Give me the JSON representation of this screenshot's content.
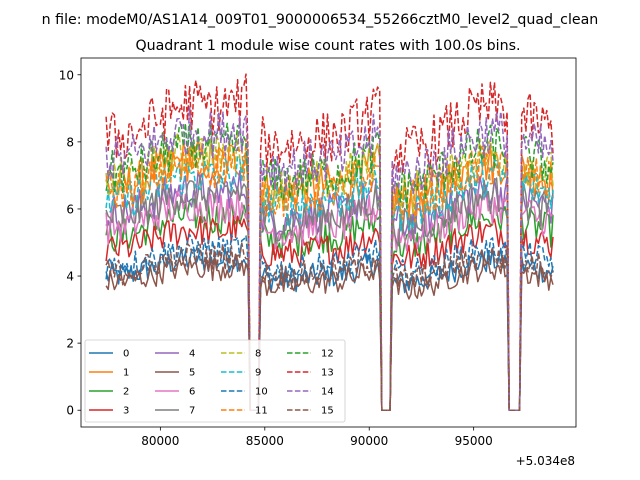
{
  "chart_data": {
    "type": "line",
    "suptitle": "n file: modeM0/AS1A14_009T01_9000006534_55266cztM0_level2_quad_clean",
    "title": "Quadrant 1 module wise count rates with 100.0s bins.",
    "xlabel": "",
    "ylabel": "",
    "x_offset_label": "+5.034e8",
    "xlim": [
      76200,
      99900
    ],
    "ylim": [
      -0.5,
      10.5
    ],
    "x_ticks": [
      80000,
      85000,
      90000,
      95000
    ],
    "x_tick_labels": [
      "80000",
      "85000",
      "90000",
      "95000"
    ],
    "y_ticks": [
      0,
      2,
      4,
      6,
      8,
      10
    ],
    "y_tick_labels": [
      "0",
      "2",
      "4",
      "6",
      "8",
      "10"
    ],
    "x_range": [
      77400,
      98800
    ],
    "x_step": 100,
    "gaps": [
      [
        84250,
        84700
      ],
      [
        90550,
        91000
      ],
      [
        96700,
        97250
      ]
    ],
    "legend_location": "lower-left",
    "series": [
      {
        "name": "0",
        "color": "#1f77b4",
        "style": "solid",
        "mean": 4.1
      },
      {
        "name": "1",
        "color": "#ff7f0e",
        "style": "solid",
        "mean": 6.8
      },
      {
        "name": "2",
        "color": "#2ca02c",
        "style": "solid",
        "mean": 5.3
      },
      {
        "name": "3",
        "color": "#d62728",
        "style": "solid",
        "mean": 4.9
      },
      {
        "name": "4",
        "color": "#9467bd",
        "style": "solid",
        "mean": 6.0
      },
      {
        "name": "5",
        "color": "#8c564b",
        "style": "solid",
        "mean": 3.9
      },
      {
        "name": "6",
        "color": "#e377c2",
        "style": "solid",
        "mean": 5.6
      },
      {
        "name": "7",
        "color": "#7f7f7f",
        "style": "solid",
        "mean": 5.9
      },
      {
        "name": "8",
        "color": "#bcbd22",
        "style": "dashed",
        "mean": 7.0
      },
      {
        "name": "9",
        "color": "#17becf",
        "style": "dashed",
        "mean": 6.4
      },
      {
        "name": "10",
        "color": "#1f77b4",
        "style": "dashed",
        "mean": 4.4
      },
      {
        "name": "11",
        "color": "#ff7f0e",
        "style": "dashed",
        "mean": 6.7
      },
      {
        "name": "12",
        "color": "#2ca02c",
        "style": "dashed",
        "mean": 7.2
      },
      {
        "name": "13",
        "color": "#d62728",
        "style": "dashed",
        "mean": 8.3
      },
      {
        "name": "14",
        "color": "#9467bd",
        "style": "dashed",
        "mean": 7.6
      },
      {
        "name": "15",
        "color": "#8c564b",
        "style": "dashed",
        "mean": 4.2
      }
    ]
  }
}
